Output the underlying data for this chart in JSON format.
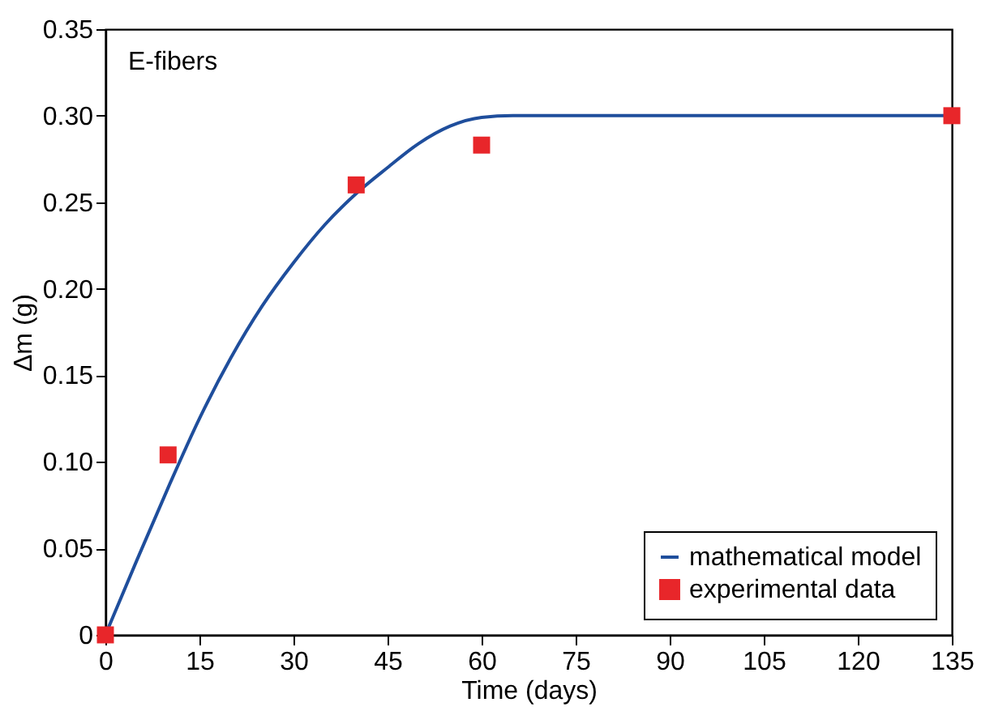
{
  "chart_data": {
    "type": "line",
    "xlabel": "Time (days)",
    "ylabel": "Δm (g)",
    "annotations": [
      "E-fibers"
    ],
    "xlim": [
      0,
      135
    ],
    "xticks": [
      0,
      15,
      30,
      45,
      60,
      75,
      90,
      105,
      120,
      135
    ],
    "ylim": [
      0,
      0.35
    ],
    "yticks": [
      0,
      0.05,
      {
        "value": 0.1,
        "label": "0.10"
      },
      0.15,
      {
        "value": 0.2,
        "label": "0.20"
      },
      0.25,
      {
        "value": 0.3,
        "label": "0.30"
      },
      0.35
    ],
    "grid": false,
    "legend": "bottom right",
    "series": [
      {
        "name": "mathematical model",
        "type": "line",
        "color": "#1f4e9c",
        "marker": "none",
        "line_style": "solid",
        "x": [
          0,
          5,
          10,
          15,
          20,
          25,
          30,
          35,
          40,
          45,
          50,
          55,
          60,
          65,
          135
        ],
        "values": [
          0,
          0.043,
          0.085,
          0.125,
          0.16,
          0.19,
          0.215,
          0.237,
          0.255,
          0.27,
          0.284,
          0.294,
          0.299,
          0.3,
          0.3
        ]
      },
      {
        "name": "experimental data",
        "type": "scatter",
        "color": "#e8262a",
        "marker": "square",
        "x": [
          0,
          10,
          40,
          60,
          135
        ],
        "values": [
          0,
          0.104,
          0.26,
          0.283,
          0.3
        ]
      }
    ]
  }
}
